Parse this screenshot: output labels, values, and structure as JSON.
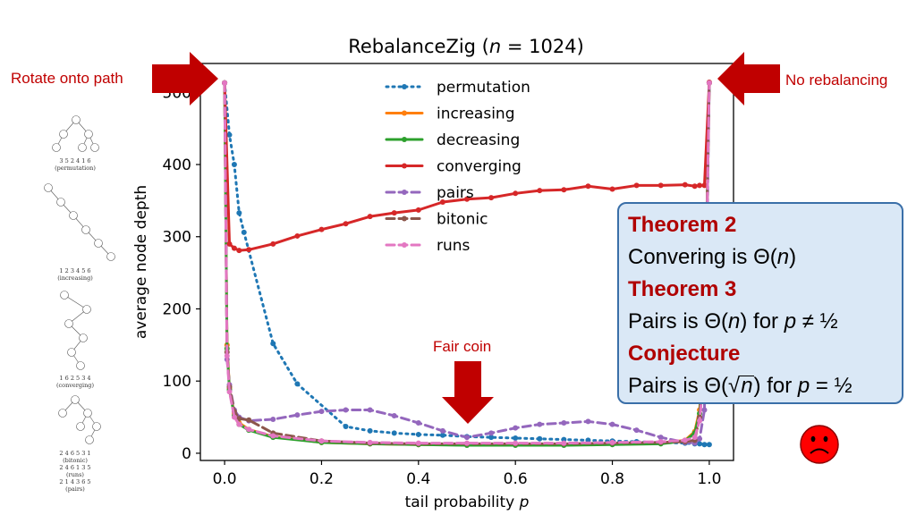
{
  "chart_data": {
    "type": "line",
    "title_prefix": "RebalanceZig (",
    "title_var": "n",
    "title_suffix": " = 1024)",
    "xlabel_prefix": "tail probability ",
    "xlabel_var": "p",
    "ylabel": "average node depth",
    "xlim": [
      -0.05,
      1.05
    ],
    "ylim": [
      -10,
      540
    ],
    "xticks": [
      "0.0",
      "0.2",
      "0.4",
      "0.6",
      "0.8",
      "1.0"
    ],
    "xtick_values": [
      0,
      0.2,
      0.4,
      0.6,
      0.8,
      1.0
    ],
    "yticks": [
      "0",
      "100",
      "200",
      "300",
      "400",
      "500"
    ],
    "ytick_values": [
      0,
      100,
      200,
      300,
      400,
      500
    ],
    "grid": false,
    "legend_position": "top-center",
    "series": [
      {
        "name": "permutation",
        "color": "#1f77b4",
        "dash": "dotted",
        "x": [
          0,
          0.01,
          0.02,
          0.03,
          0.04,
          0.1,
          0.15,
          0.25,
          0.3,
          0.35,
          0.4,
          0.45,
          0.5,
          0.55,
          0.6,
          0.65,
          0.7,
          0.75,
          0.8,
          0.85,
          0.9,
          0.95,
          0.97,
          0.98,
          0.99,
          1.0
        ],
        "y": [
          513,
          441,
          400,
          333,
          306,
          152,
          96,
          37,
          31,
          28,
          26,
          25,
          23,
          22,
          21,
          20,
          19,
          18,
          17,
          16,
          15,
          14,
          13,
          13,
          12,
          12
        ]
      },
      {
        "name": "increasing",
        "color": "#ff7f0e",
        "dash": "solid",
        "x": [
          0,
          0.005,
          0.01,
          0.02,
          0.03,
          0.05,
          0.1,
          0.2,
          0.3,
          0.4,
          0.5,
          0.6,
          0.7,
          0.8,
          0.9,
          0.95,
          0.97,
          0.98,
          0.99,
          1.0
        ],
        "y": [
          513,
          150,
          90,
          55,
          42,
          33,
          23,
          15,
          13,
          12,
          12,
          12,
          12,
          13,
          14,
          18,
          30,
          60,
          150,
          513
        ]
      },
      {
        "name": "decreasing",
        "color": "#2ca02c",
        "dash": "solid",
        "x": [
          0,
          0.005,
          0.01,
          0.02,
          0.03,
          0.05,
          0.1,
          0.2,
          0.3,
          0.4,
          0.5,
          0.6,
          0.7,
          0.8,
          0.9,
          0.95,
          0.97,
          0.98,
          0.99,
          1.0
        ],
        "y": [
          513,
          145,
          88,
          52,
          40,
          32,
          22,
          15,
          13,
          12,
          11,
          11,
          11,
          12,
          13,
          17,
          28,
          55,
          140,
          513
        ]
      },
      {
        "name": "converging",
        "color": "#d62728",
        "dash": "solid",
        "x": [
          0,
          0.01,
          0.02,
          0.03,
          0.05,
          0.1,
          0.15,
          0.2,
          0.25,
          0.3,
          0.35,
          0.4,
          0.45,
          0.5,
          0.55,
          0.6,
          0.65,
          0.7,
          0.75,
          0.8,
          0.85,
          0.9,
          0.95,
          0.97,
          0.98,
          0.99,
          1.0
        ],
        "y": [
          513,
          290,
          284,
          281,
          282,
          290,
          301,
          310,
          318,
          328,
          333,
          337,
          348,
          352,
          354,
          360,
          364,
          365,
          370,
          366,
          371,
          371,
          372,
          370,
          371,
          371,
          514
        ]
      },
      {
        "name": "pairs",
        "color": "#9467bd",
        "dash": "dashed",
        "x": [
          0,
          0.005,
          0.01,
          0.02,
          0.03,
          0.05,
          0.1,
          0.15,
          0.2,
          0.25,
          0.3,
          0.35,
          0.4,
          0.45,
          0.5,
          0.55,
          0.6,
          0.65,
          0.7,
          0.75,
          0.8,
          0.85,
          0.9,
          0.95,
          0.97,
          0.98,
          0.99,
          1.0
        ],
        "y": [
          513,
          130,
          95,
          60,
          50,
          45,
          47,
          53,
          58,
          60,
          60,
          52,
          42,
          31,
          22,
          28,
          35,
          40,
          42,
          44,
          40,
          32,
          22,
          15,
          14,
          20,
          60,
          513
        ]
      },
      {
        "name": "bitonic",
        "color": "#8c564b",
        "dash": "dashed",
        "x": [
          0,
          0.005,
          0.01,
          0.02,
          0.03,
          0.05,
          0.1,
          0.2,
          0.3,
          0.4,
          0.5,
          0.6,
          0.7,
          0.8,
          0.9,
          0.95,
          0.97,
          0.98,
          0.99,
          1.0
        ],
        "y": [
          513,
          140,
          92,
          58,
          48,
          46,
          28,
          17,
          14,
          13,
          13,
          13,
          13,
          14,
          15,
          16,
          18,
          50,
          130,
          513
        ]
      },
      {
        "name": "runs",
        "color": "#e377c2",
        "dash": "dashed",
        "x": [
          0,
          0.005,
          0.01,
          0.02,
          0.03,
          0.05,
          0.1,
          0.2,
          0.3,
          0.4,
          0.5,
          0.6,
          0.7,
          0.8,
          0.9,
          0.95,
          0.97,
          0.98,
          0.99,
          1.0
        ],
        "y": [
          513,
          135,
          85,
          50,
          40,
          33,
          24,
          17,
          15,
          14,
          14,
          14,
          14,
          15,
          16,
          18,
          22,
          45,
          120,
          513
        ]
      }
    ]
  },
  "callouts": {
    "left_label": "Rotate onto path",
    "right_label": "No rebalancing",
    "fair_coin_label": "Fair coin"
  },
  "theorems": {
    "t2_title": "Theorem 2",
    "t2_prefix": "Convering is Θ(",
    "t2_var": "n",
    "t2_suffix": ")",
    "t3_title": "Theorem 3",
    "t3_prefix": "Pairs is Θ(",
    "t3_var": "n",
    "t3_mid": ") for ",
    "t3_p": "p",
    "t3_cond": " ≠ ½",
    "conj_title": "Conjecture",
    "conj_prefix": "Pairs is Θ(",
    "conj_root": "√",
    "conj_var": "n",
    "conj_mid": ") for ",
    "conj_p": "p",
    "conj_cond": " = ½"
  },
  "trees": {
    "t1_label1": "3 5 2 4 1 6",
    "t1_label2": "(permutation)",
    "t2_label1": "1 2 3 4 5 6",
    "t2_label2": "(increasing)",
    "t3_label1": "1 6 2 5 3 4",
    "t3_label2": "(converging)",
    "t4_label1": "2 4 6 5 3 1",
    "t4_label2": "(bitonic)",
    "t4_label3": "2 4 6 1 3 5",
    "t4_label4": "(runs)",
    "t4_label5": "2 1 4 3 6 5",
    "t4_label6": "(pairs)"
  },
  "colors": {
    "callout_red": "#c00000",
    "arrow_red": "#c00000",
    "theorem_title": "#b00000",
    "box_fill": "#dae8f6",
    "box_border": "#3a6fa8"
  },
  "icons": {
    "sad_face": "sad-face-icon",
    "arrows": "block-arrow-icon"
  }
}
